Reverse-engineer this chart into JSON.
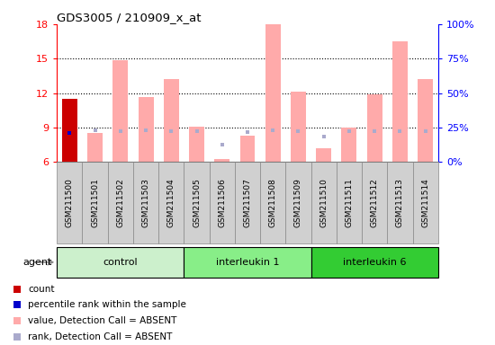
{
  "title": "GDS3005 / 210909_x_at",
  "samples": [
    "GSM211500",
    "GSM211501",
    "GSM211502",
    "GSM211503",
    "GSM211504",
    "GSM211505",
    "GSM211506",
    "GSM211507",
    "GSM211508",
    "GSM211509",
    "GSM211510",
    "GSM211511",
    "GSM211512",
    "GSM211513",
    "GSM211514"
  ],
  "groups": [
    {
      "name": "control",
      "start": 0,
      "end": 4,
      "color": "#ccf0cc"
    },
    {
      "name": "interleukin 1",
      "start": 5,
      "end": 9,
      "color": "#88ee88"
    },
    {
      "name": "interleukin 6",
      "start": 10,
      "end": 14,
      "color": "#33cc33"
    }
  ],
  "absent_value_bars": [
    8.5,
    14.9,
    11.7,
    13.2,
    9.1,
    6.3,
    8.3,
    18.0,
    12.1,
    7.2,
    9.0,
    11.9,
    16.5,
    13.2
  ],
  "absent_value_indices": [
    1,
    2,
    3,
    4,
    5,
    6,
    7,
    8,
    9,
    10,
    11,
    12,
    13,
    14
  ],
  "absent_rank_values": [
    8.8,
    8.7,
    8.8,
    8.7,
    8.7,
    7.5,
    8.6,
    8.8,
    8.7,
    8.2,
    8.7,
    8.7,
    8.7,
    8.7
  ],
  "absent_rank_indices": [
    1,
    2,
    3,
    4,
    5,
    6,
    7,
    8,
    9,
    10,
    11,
    12,
    13,
    14
  ],
  "count_values": [
    11.5
  ],
  "count_indices": [
    0
  ],
  "percentile_values": [
    8.5
  ],
  "percentile_indices": [
    0
  ],
  "ylim_left": [
    6,
    18
  ],
  "ylim_right": [
    0,
    100
  ],
  "yticks_left": [
    6,
    9,
    12,
    15,
    18
  ],
  "yticks_right": [
    0,
    25,
    50,
    75,
    100
  ],
  "bar_width": 0.6,
  "count_color": "#cc0000",
  "percentile_color": "#0000cc",
  "absent_value_color": "#ffaaaa",
  "absent_rank_color": "#aaaacc",
  "legend": [
    {
      "label": "count",
      "color": "#cc0000"
    },
    {
      "label": "percentile rank within the sample",
      "color": "#0000cc"
    },
    {
      "label": "value, Detection Call = ABSENT",
      "color": "#ffaaaa"
    },
    {
      "label": "rank, Detection Call = ABSENT",
      "color": "#aaaacc"
    }
  ],
  "agent_label": "agent"
}
